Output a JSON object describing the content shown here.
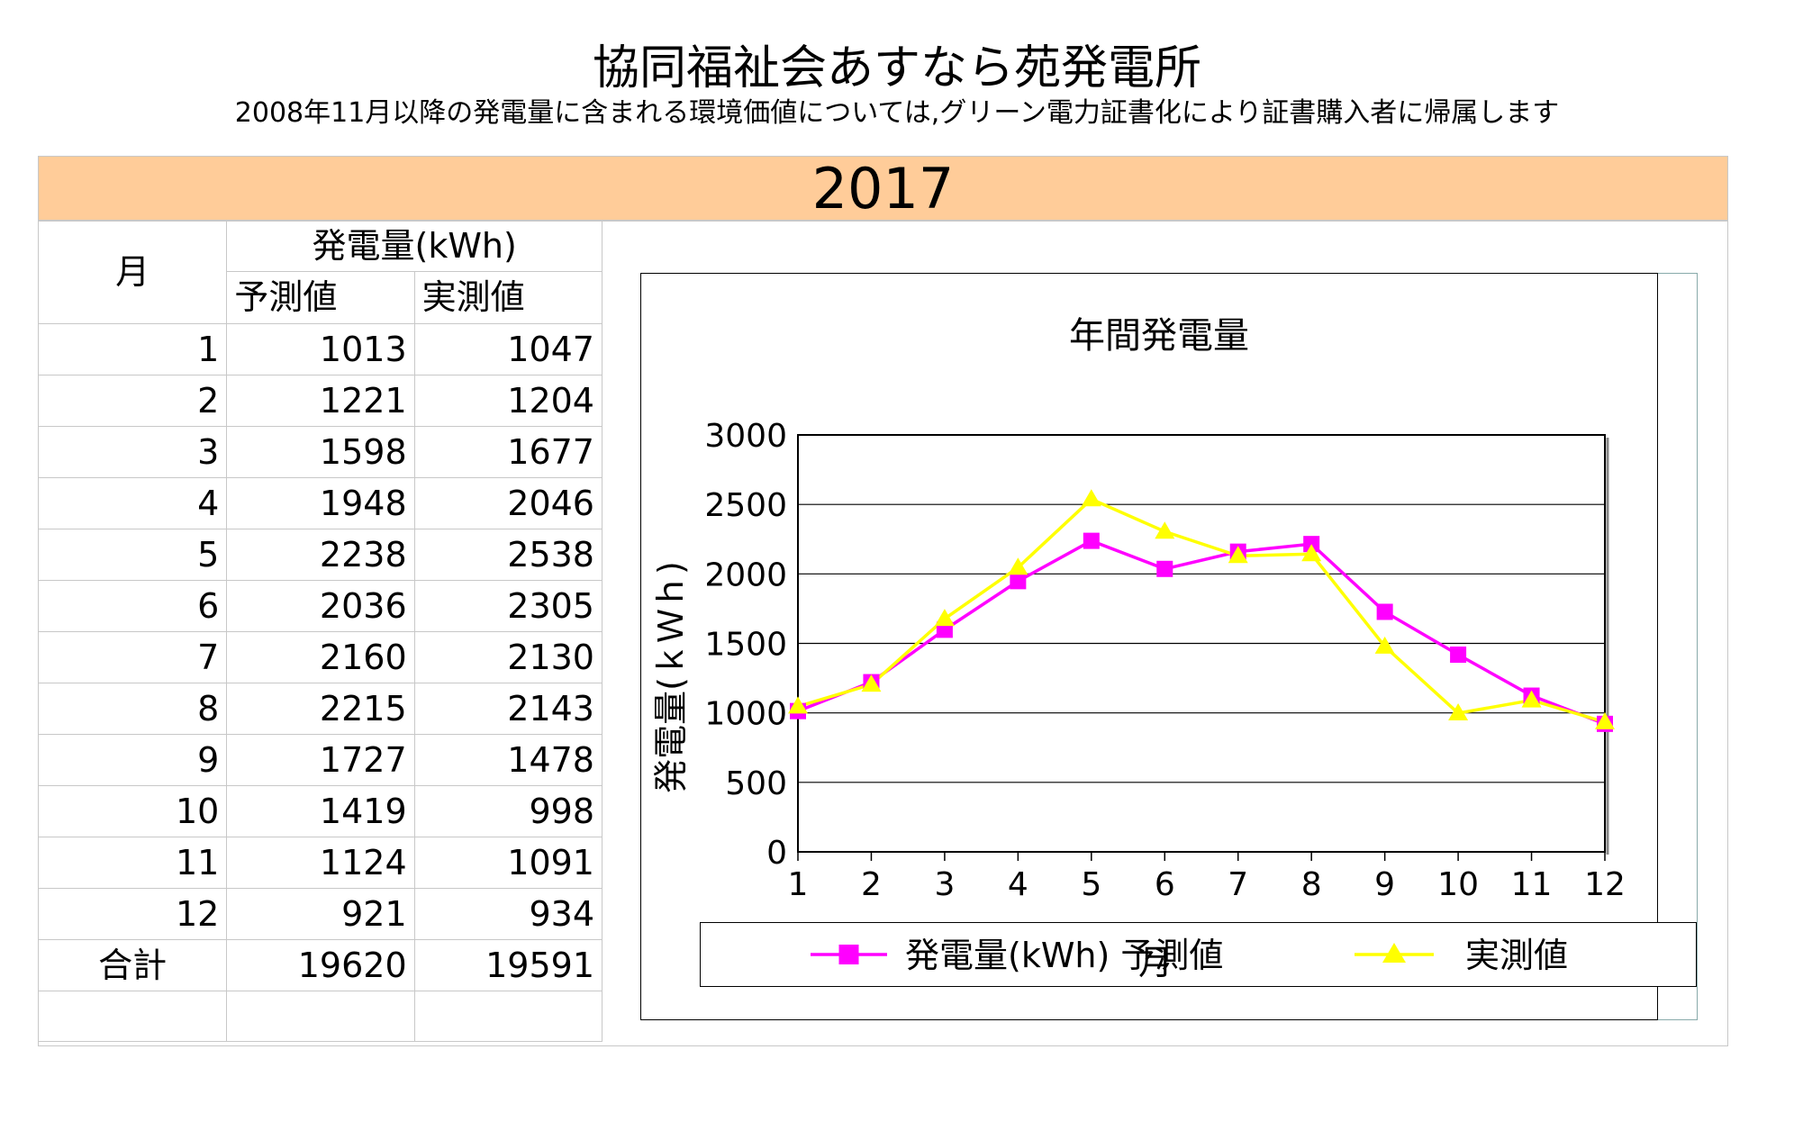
{
  "header": {
    "title": "協同福祉会あすなら苑発電所",
    "subtitle": "2008年11月以降の発電量に含まれる環境価値については,グリーン電力証書化により証書購入者に帰属します",
    "year": "2017"
  },
  "table": {
    "col_month": "月",
    "col_group": "発電量(kWh)",
    "col_forecast": "予測値",
    "col_actual": "実測値",
    "rows": [
      {
        "month": "1",
        "forecast": "1013",
        "actual": "1047"
      },
      {
        "month": "2",
        "forecast": "1221",
        "actual": "1204"
      },
      {
        "month": "3",
        "forecast": "1598",
        "actual": "1677"
      },
      {
        "month": "4",
        "forecast": "1948",
        "actual": "2046"
      },
      {
        "month": "5",
        "forecast": "2238",
        "actual": "2538"
      },
      {
        "month": "6",
        "forecast": "2036",
        "actual": "2305"
      },
      {
        "month": "7",
        "forecast": "2160",
        "actual": "2130"
      },
      {
        "month": "8",
        "forecast": "2215",
        "actual": "2143"
      },
      {
        "month": "9",
        "forecast": "1727",
        "actual": "1478"
      },
      {
        "month": "10",
        "forecast": "1419",
        "actual": "998"
      },
      {
        "month": "11",
        "forecast": "1124",
        "actual": "1091"
      },
      {
        "month": "12",
        "forecast": "921",
        "actual": "934"
      }
    ],
    "total_label": "合計",
    "total_forecast": "19620",
    "total_actual": "19591"
  },
  "chart_data": {
    "type": "line",
    "title": "年間発電量",
    "ylabel": "発電量(ｋＷｈ)",
    "xlabel": "月",
    "categories": [
      "1",
      "2",
      "3",
      "4",
      "5",
      "6",
      "7",
      "8",
      "9",
      "10",
      "11",
      "12"
    ],
    "ylim": [
      0,
      3000
    ],
    "yticks": [
      0,
      500,
      1000,
      1500,
      2000,
      2500,
      3000
    ],
    "grid": true,
    "legend_position": "bottom",
    "series": [
      {
        "name": "発電量(kWh) 予測値",
        "color": "#ff00ff",
        "marker": "square",
        "values": [
          1013,
          1221,
          1598,
          1948,
          2238,
          2036,
          2160,
          2215,
          1727,
          1419,
          1124,
          921
        ]
      },
      {
        "name": "実測値",
        "color": "#ffff00",
        "marker": "triangle",
        "values": [
          1047,
          1204,
          1677,
          2046,
          2538,
          2305,
          2130,
          2143,
          1478,
          998,
          1091,
          934
        ]
      }
    ]
  }
}
